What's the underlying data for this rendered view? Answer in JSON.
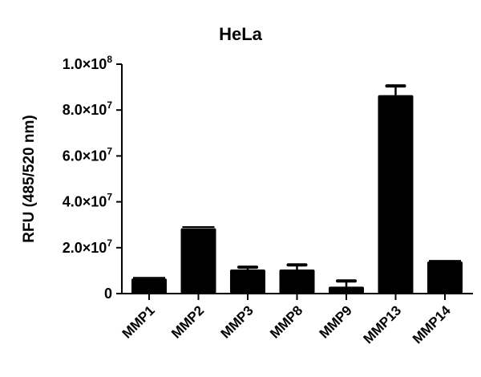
{
  "chart_data": {
    "type": "bar",
    "title": "HeLa",
    "xlabel": "",
    "ylabel": "RFU (485/520 nm)",
    "ylim": [
      0,
      100000000
    ],
    "yticks": [
      {
        "value": 0,
        "label": "0"
      },
      {
        "value": 20000000,
        "label": "2.0×10",
        "exp": "7"
      },
      {
        "value": 40000000,
        "label": "4.0×10",
        "exp": "7"
      },
      {
        "value": 60000000,
        "label": "6.0×10",
        "exp": "7"
      },
      {
        "value": 80000000,
        "label": "8.0×10",
        "exp": "7"
      },
      {
        "value": 100000000,
        "label": "1.0×10",
        "exp": "8"
      }
    ],
    "categories": [
      "MMP1",
      "MMP2",
      "MMP3",
      "MMP8",
      "MMP9",
      "MMP13",
      "MMP14"
    ],
    "values": [
      6600000,
      28500000,
      10500000,
      10500000,
      3000000,
      86500000,
      14000000
    ],
    "errors": [
      300000,
      500000,
      1000000,
      2000000,
      2500000,
      4000000,
      300000
    ],
    "bar_color": "#000000",
    "grid": false,
    "legend": null
  }
}
